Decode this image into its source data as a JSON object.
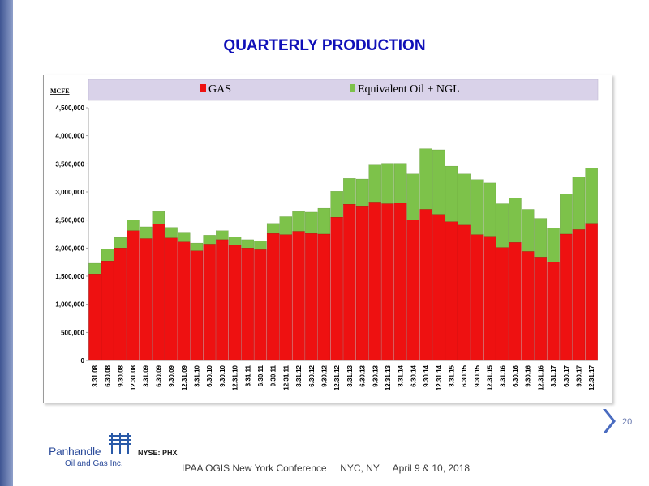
{
  "slide": {
    "title": "QUARTERLY PRODUCTION",
    "page_number": "20",
    "footer": "IPAA OGIS New York Conference     NYC, NY     April 9 & 10, 2018"
  },
  "logo": {
    "name": "Panhandle",
    "subtitle": "Oil and Gas Inc.",
    "ticker": "NYSE: PHX"
  },
  "colors": {
    "gas": "#ee1111",
    "oil_ngl": "#7dc24a",
    "legend_band": "#d9d2e9",
    "plot_bg": "#ffffff",
    "title": "#1010b8"
  },
  "chart_data": {
    "type": "bar",
    "stacked": true,
    "unit_label": "MCFE",
    "ylim": [
      0,
      4500000
    ],
    "yticks": [
      "0",
      "500,000",
      "1,000,000",
      "1,500,000",
      "2,000,000",
      "2,500,000",
      "3,000,000",
      "3,500,000",
      "4,000,000",
      "4,500,000"
    ],
    "ytick_values": [
      0,
      500000,
      1000000,
      1500000,
      2000000,
      2500000,
      3000000,
      3500000,
      4000000,
      4500000
    ],
    "grid": false,
    "legend_position": "top",
    "categories": [
      "3.31.08",
      "6.30.08",
      "9.30.08",
      "12.31.08",
      "3.31.09",
      "6.30.09",
      "9.30.09",
      "12.31.09",
      "3.31.10",
      "6.30.10",
      "9.30.10",
      "12.31.10",
      "3.31.11",
      "6.30.11",
      "9.30.11",
      "12.31.11",
      "3.31.12",
      "6.30.12",
      "9.30.12",
      "12.31.12",
      "3.31.13",
      "6.30.13",
      "9.30.13",
      "12.31.13",
      "3.31.14",
      "6.30.14",
      "9.30.14",
      "12.31.14",
      "3.31.15",
      "6.30.15",
      "9.30.15",
      "12.31.15",
      "3.31.16",
      "6.30.16",
      "9.30.16",
      "12.31.16",
      "3.31.17",
      "6.30.17",
      "9.30.17",
      "12.31.17"
    ],
    "series": [
      {
        "name": "GAS",
        "color": "#ee1111",
        "values": [
          1540000,
          1770000,
          2000000,
          2310000,
          2170000,
          2430000,
          2180000,
          2110000,
          1950000,
          2070000,
          2150000,
          2050000,
          2000000,
          1970000,
          2260000,
          2240000,
          2300000,
          2260000,
          2250000,
          2550000,
          2780000,
          2750000,
          2820000,
          2790000,
          2800000,
          2500000,
          2690000,
          2600000,
          2470000,
          2410000,
          2240000,
          2210000,
          2010000,
          2100000,
          1940000,
          1840000,
          1750000,
          2250000,
          2330000,
          2440000
        ]
      },
      {
        "name": "Equivalent Oil + NGL",
        "color": "#7dc24a",
        "values": [
          190000,
          210000,
          190000,
          190000,
          210000,
          220000,
          190000,
          160000,
          140000,
          160000,
          160000,
          150000,
          150000,
          160000,
          180000,
          320000,
          350000,
          380000,
          460000,
          460000,
          460000,
          480000,
          660000,
          720000,
          710000,
          820000,
          1080000,
          1150000,
          990000,
          910000,
          980000,
          950000,
          780000,
          790000,
          750000,
          690000,
          610000,
          710000,
          940000,
          990000
        ]
      }
    ]
  }
}
